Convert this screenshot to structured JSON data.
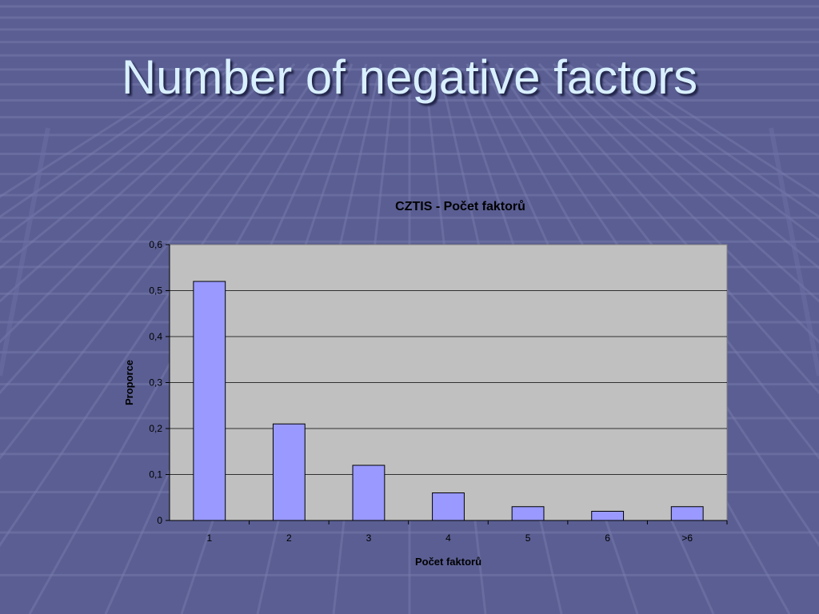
{
  "slide": {
    "title": "Number of negative factors",
    "colors": {
      "background": "#5a5e92",
      "title": "#d9f0ff"
    }
  },
  "chart_data": {
    "type": "bar",
    "title": "CZTIS - Počet faktorů",
    "xlabel": "Počet faktorů",
    "ylabel": "Proporce",
    "categories": [
      "1",
      "2",
      "3",
      "4",
      "5",
      "6",
      ">6"
    ],
    "values": [
      0.52,
      0.21,
      0.12,
      0.06,
      0.03,
      0.02,
      0.03
    ],
    "ylim": [
      0,
      0.6
    ],
    "yticks": [
      "0",
      "0,1",
      "0,2",
      "0,3",
      "0,4",
      "0,5",
      "0,6"
    ],
    "grid": true,
    "legend": "none",
    "colors": {
      "bar": "#9999ff",
      "plot_area": "#c0c0c0",
      "gridline": "#000000"
    }
  }
}
